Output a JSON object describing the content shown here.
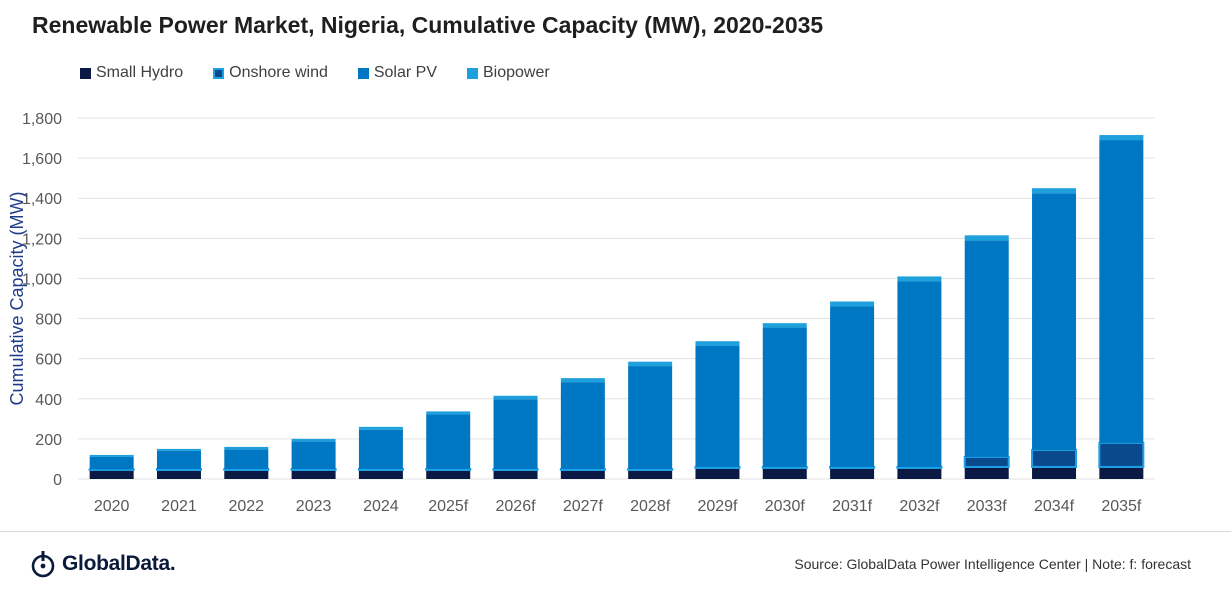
{
  "title": "Renewable Power Market, Nigeria, Cumulative Capacity (MW), 2020-2035",
  "colors": {
    "small_hydro": "#0b1a44",
    "onshore_wind": "#0a4a8c",
    "onshore_wind_border": "#1da1e6",
    "solar_pv": "#0077c3",
    "biopower": "#1ea0dc",
    "grid": "#e3e3e3",
    "axis_text": "#595959",
    "ylabel": "#1f3c88"
  },
  "legend": {
    "items": [
      "Small Hydro",
      "Onshore wind",
      "Solar PV",
      "Biopower"
    ]
  },
  "chart_data": {
    "type": "bar",
    "stacked": true,
    "ylabel": "Cumulative Capacity (MW)",
    "xlabel": "",
    "ylim": [
      0,
      1800
    ],
    "yticks": [
      0,
      200,
      400,
      600,
      800,
      1000,
      1200,
      1400,
      1600,
      1800
    ],
    "ytick_labels": [
      "0",
      "200",
      "400",
      "600",
      "800",
      "1,000",
      "1,200",
      "1,400",
      "1,600",
      "1,800"
    ],
    "grid": true,
    "legend_position": "top-left",
    "categories": [
      "2020",
      "2021",
      "2022",
      "2023",
      "2024",
      "2025f",
      "2026f",
      "2027f",
      "2028f",
      "2029f",
      "2030f",
      "2031f",
      "2032f",
      "2033f",
      "2034f",
      "2035f"
    ],
    "series": [
      {
        "name": "Small Hydro",
        "values": [
          45,
          45,
          45,
          45,
          45,
          45,
          45,
          45,
          45,
          55,
          55,
          55,
          55,
          60,
          60,
          60
        ]
      },
      {
        "name": "Onshore wind",
        "values": [
          3,
          5,
          5,
          5,
          5,
          5,
          5,
          5,
          5,
          5,
          5,
          5,
          5,
          50,
          85,
          120
        ]
      },
      {
        "name": "Solar PV",
        "values": [
          62,
          90,
          98,
          138,
          195,
          272,
          347,
          433,
          513,
          605,
          695,
          800,
          925,
          1080,
          1280,
          1510
        ]
      },
      {
        "name": "Biopower",
        "values": [
          10,
          10,
          12,
          12,
          15,
          15,
          18,
          20,
          22,
          22,
          22,
          25,
          25,
          25,
          25,
          25
        ]
      }
    ]
  },
  "footer": {
    "logo": "GlobalData.",
    "source": "Source: GlobalData Power Intelligence Center | Note: f: forecast"
  }
}
